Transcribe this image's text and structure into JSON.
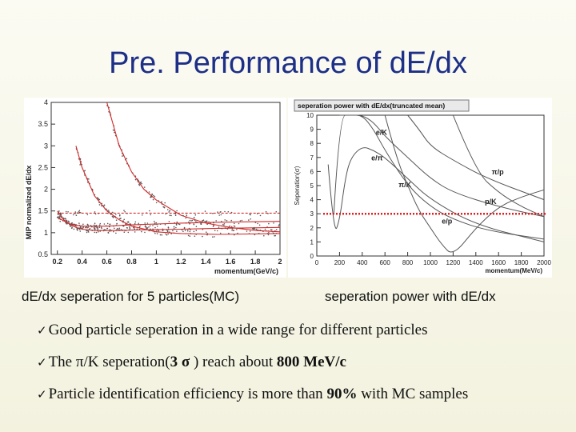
{
  "slide": {
    "title": "Pre. Performance of dE/dx",
    "caption_left": "dE/dx seperation for 5 particles(MC)",
    "caption_right": "seperation power with dE/dx",
    "bullets": [
      {
        "check": "ü",
        "parts": [
          "Good particle seperation in a wide range for different particles"
        ]
      },
      {
        "check": "ü",
        "parts": [
          "The π/K seperation(",
          "3 σ",
          " ) reach about ",
          "800 MeV/c"
        ]
      },
      {
        "check": "ü",
        "parts": [
          "Particle identification efficiency is more than ",
          "90%",
          " with MC samples"
        ]
      }
    ]
  },
  "chart_data": [
    {
      "type": "scatter",
      "title": "",
      "xlabel": "momentum(GeV/c)",
      "ylabel": "MIP normalized dE/dx",
      "xlim": [
        0.15,
        2.0
      ],
      "ylim": [
        0.5,
        4.0
      ],
      "xticks": [
        "0.2",
        "0.4",
        "0.6",
        "0.8",
        "1",
        "1.2",
        "1.4",
        "1.6",
        "1.8",
        "2"
      ],
      "yticks": [
        "0.5",
        "1",
        "1.5",
        "2",
        "2.5",
        "3",
        "3.5",
        "4"
      ],
      "series": [
        {
          "x": [
            0.2,
            0.25,
            0.3,
            0.35,
            0.4,
            0.5,
            0.6,
            0.7,
            0.8,
            1.0,
            1.2,
            1.5,
            2.0
          ],
          "y": [
            1.5,
            1.3,
            1.2,
            1.12,
            1.08,
            1.05,
            1.05,
            1.05,
            1.06,
            1.07,
            1.08,
            1.1,
            1.12
          ]
        },
        {
          "x": [
            0.2,
            0.3,
            0.4,
            0.5,
            0.6,
            0.8,
            1.0,
            1.2,
            1.5,
            2.0
          ],
          "y": [
            1.35,
            1.2,
            1.15,
            1.15,
            1.15,
            1.18,
            1.2,
            1.22,
            1.24,
            1.26
          ]
        },
        {
          "x": [
            0.35,
            0.4,
            0.5,
            0.6,
            0.7,
            0.8,
            1.0,
            1.2,
            1.5,
            2.0
          ],
          "y": [
            3.0,
            2.5,
            1.85,
            1.5,
            1.3,
            1.15,
            1.02,
            0.98,
            0.96,
            0.98
          ]
        },
        {
          "x": [
            0.6,
            0.7,
            0.8,
            0.9,
            1.0,
            1.2,
            1.4,
            1.6,
            1.8,
            2.0
          ],
          "y": [
            4.0,
            3.0,
            2.4,
            2.0,
            1.75,
            1.4,
            1.22,
            1.12,
            1.05,
            1.02
          ]
        },
        {
          "x": [
            0.2,
            0.5,
            1.0,
            1.5,
            2.0
          ],
          "y": [
            1.45,
            1.45,
            1.45,
            1.45,
            1.45
          ]
        }
      ]
    },
    {
      "type": "line",
      "title": "seperation power with dE/dx(truncated mean)",
      "xlabel": "momentum(MeV/c)",
      "ylabel": "Seperation(σ)",
      "xlim": [
        0,
        2000
      ],
      "ylim": [
        0,
        10
      ],
      "xticks": [
        "0",
        "200",
        "400",
        "600",
        "800",
        "1000",
        "1200",
        "1400",
        "1600",
        "1800",
        "2000"
      ],
      "yticks": [
        "0",
        "1",
        "2",
        "3",
        "4",
        "5",
        "6",
        "7",
        "8",
        "9",
        "10"
      ],
      "threshold": 3,
      "series": [
        {
          "name": "e/K",
          "x": [
            150,
            200,
            300,
            400,
            500,
            600,
            800,
            1000,
            1200,
            1600,
            2000
          ],
          "y": [
            3,
            10,
            10,
            10,
            9.5,
            8.5,
            7.0,
            5.5,
            4.5,
            3.5,
            2.8
          ]
        },
        {
          "name": "e/π",
          "x": [
            100,
            150,
            200,
            250,
            300,
            400,
            500,
            600,
            800,
            1000,
            1400,
            2000
          ],
          "y": [
            6.5,
            1.5,
            2.5,
            5.5,
            7.0,
            7.8,
            7.5,
            7.0,
            5.5,
            4.0,
            2.2,
            1.0
          ]
        },
        {
          "name": "π/K",
          "x": [
            200,
            300,
            400,
            500,
            600,
            800,
            1000,
            1200,
            1500,
            2000
          ],
          "y": [
            10,
            10,
            10,
            9.0,
            7.5,
            5.0,
            3.5,
            2.6,
            1.8,
            1.2
          ]
        },
        {
          "name": "π/p",
          "x": [
            800,
            900,
            1000,
            1200,
            1500,
            2000
          ],
          "y": [
            10,
            9.0,
            7.8,
            6.8,
            5.5,
            4.0
          ]
        },
        {
          "name": "p/K",
          "x": [
            1200,
            1400,
            1600,
            1800,
            2000
          ],
          "y": [
            10,
            6.0,
            4.5,
            3.5,
            2.8
          ]
        },
        {
          "name": "e/p",
          "x": [
            600,
            700,
            800,
            900,
            1000,
            1100,
            1200,
            1400,
            1600,
            1800,
            2000
          ],
          "y": [
            10,
            7.0,
            5.0,
            3.2,
            2.0,
            0.8,
            0.0,
            2.0,
            3.5,
            4.2,
            4.7
          ]
        }
      ]
    }
  ]
}
